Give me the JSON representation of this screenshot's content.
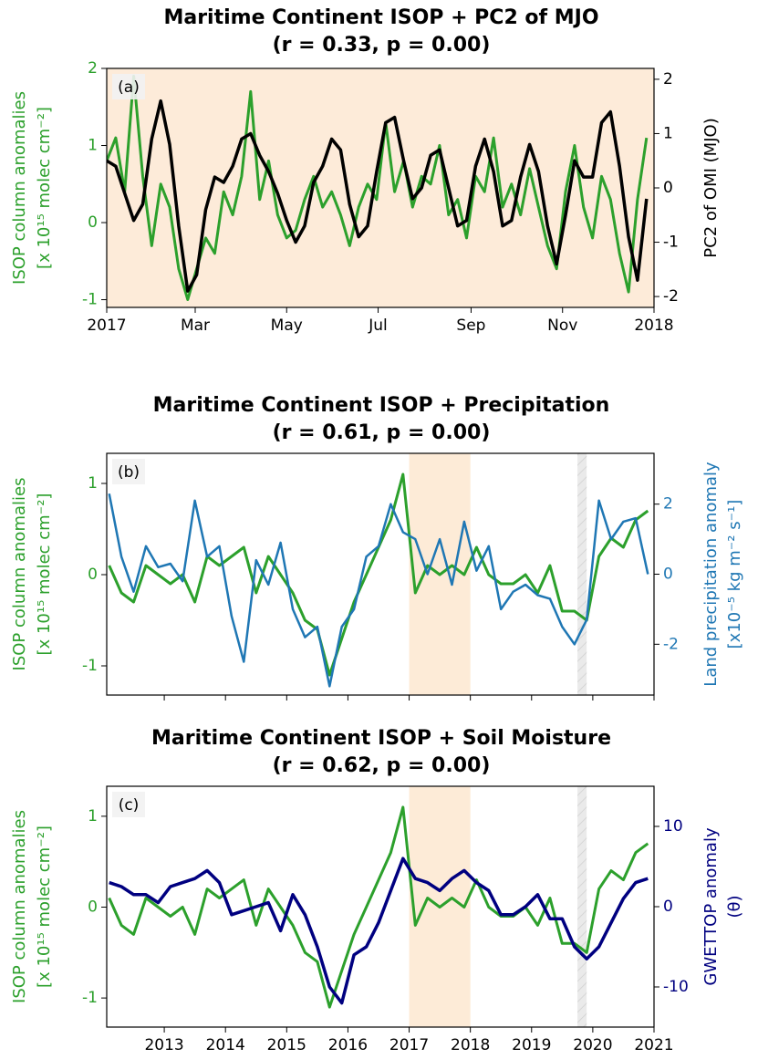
{
  "chart_data": [
    {
      "type": "line",
      "title": "Maritime Continent ISOP + PC2 of MJO",
      "subtitle": "(r = 0.33, p =  0.00)",
      "panel_label": "(a)",
      "background": "#fdebd9",
      "x": [
        0,
        6,
        12,
        18,
        24,
        30,
        36,
        42,
        48,
        54,
        60,
        66,
        72,
        78,
        84,
        90,
        96,
        102,
        108,
        114,
        120,
        126,
        132,
        138,
        144,
        150,
        156,
        162,
        168,
        174,
        180,
        186,
        192,
        198,
        204,
        210,
        216,
        222,
        228,
        234,
        240,
        246,
        252,
        258,
        264,
        270,
        276,
        282,
        288,
        294,
        300,
        306,
        312,
        318,
        324,
        330,
        336,
        342,
        348,
        354,
        360
      ],
      "xlim": [
        0,
        365
      ],
      "xticks": [
        {
          "value": 0,
          "label": "2017"
        },
        {
          "value": 59,
          "label": "Mar"
        },
        {
          "value": 120,
          "label": "May"
        },
        {
          "value": 181,
          "label": "Jul"
        },
        {
          "value": 243,
          "label": "Sep"
        },
        {
          "value": 304,
          "label": "Nov"
        },
        {
          "value": 365,
          "label": "2018"
        }
      ],
      "ylim": [
        -1.1,
        2
      ],
      "yticks": [
        -1,
        0,
        1,
        2
      ],
      "y2lim": [
        -2.2,
        2.2
      ],
      "y2ticks": [
        -2,
        -1,
        0,
        1,
        2
      ],
      "ylabel": [
        "ISOP column anomalies",
        "[x 10¹⁵ molec cm⁻²]"
      ],
      "y2label": [
        "PC2 of OMI (MJO)"
      ],
      "series": [
        {
          "color": "#2ca02c",
          "values": [
            0.8,
            1.1,
            0.4,
            1.9,
            0.6,
            -0.3,
            0.5,
            0.2,
            -0.6,
            -1.0,
            -0.6,
            -0.2,
            -0.4,
            0.4,
            0.1,
            0.6,
            1.7,
            0.3,
            0.8,
            0.1,
            -0.2,
            -0.1,
            0.3,
            0.6,
            0.2,
            0.4,
            0.1,
            -0.3,
            0.2,
            0.5,
            0.3,
            1.3,
            0.4,
            0.8,
            0.2,
            0.6,
            0.5,
            1.0,
            0.1,
            0.3,
            -0.2,
            0.6,
            0.4,
            1.1,
            0.2,
            0.5,
            0.1,
            0.7,
            0.2,
            -0.3,
            -0.6,
            0.4,
            1.0,
            0.2,
            -0.2,
            0.6,
            0.3,
            -0.4,
            -0.9,
            0.3,
            1.1
          ]
        },
        {
          "color": "#000000",
          "axis": "y2",
          "values": [
            0.5,
            0.4,
            -0.1,
            -0.6,
            -0.3,
            0.9,
            1.6,
            0.8,
            -0.7,
            -1.9,
            -1.6,
            -0.4,
            0.2,
            0.1,
            0.4,
            0.9,
            1.0,
            0.6,
            0.3,
            -0.1,
            -0.6,
            -1.0,
            -0.7,
            0.1,
            0.4,
            0.9,
            0.7,
            -0.3,
            -0.9,
            -0.7,
            0.3,
            1.2,
            1.3,
            0.5,
            -0.2,
            0.0,
            0.6,
            0.7,
            0.0,
            -0.7,
            -0.6,
            0.4,
            0.9,
            0.3,
            -0.7,
            -0.6,
            0.2,
            0.8,
            0.3,
            -0.7,
            -1.4,
            -0.5,
            0.5,
            0.2,
            0.2,
            1.2,
            1.4,
            0.4,
            -0.9,
            -1.7,
            -0.2
          ]
        }
      ]
    },
    {
      "type": "line",
      "title": "Maritime Continent ISOP + Precipitation",
      "subtitle": "(r = 0.61, p =  0.00)",
      "panel_label": "(b)",
      "spans": [
        {
          "start": 2017,
          "end": 2018,
          "color": "#fde9d3"
        },
        {
          "start": 2019.75,
          "end": 2019.9,
          "color": "#e8e8e8"
        }
      ],
      "x": [
        2012.1,
        2012.3,
        2012.5,
        2012.7,
        2012.9,
        2013.1,
        2013.3,
        2013.5,
        2013.7,
        2013.9,
        2014.1,
        2014.3,
        2014.5,
        2014.7,
        2014.9,
        2015.1,
        2015.3,
        2015.5,
        2015.7,
        2015.9,
        2016.1,
        2016.3,
        2016.5,
        2016.7,
        2016.9,
        2017.1,
        2017.3,
        2017.5,
        2017.7,
        2017.9,
        2018.1,
        2018.3,
        2018.5,
        2018.7,
        2018.9,
        2019.1,
        2019.3,
        2019.5,
        2019.7,
        2019.9,
        2020.1,
        2020.3,
        2020.5,
        2020.7,
        2020.9
      ],
      "xlim": [
        2012.06,
        2021
      ],
      "xticks": [
        2013,
        2014,
        2015,
        2016,
        2017,
        2018,
        2019,
        2020,
        2021
      ],
      "xtick_labels": false,
      "ylim": [
        -1.32,
        1.33
      ],
      "yticks": [
        -1,
        0,
        1
      ],
      "y2lim": [
        -3.45,
        3.45
      ],
      "y2ticks": [
        -2,
        0,
        2
      ],
      "ylabel": [
        "ISOP column anomalies",
        "[x 10¹⁵ molec cm⁻²]"
      ],
      "y2label": [
        "Land precipitation anomaly",
        "[x10⁻⁵ kg m⁻² s⁻¹]"
      ],
      "series": [
        {
          "color": "#2ca02c",
          "values": [
            0.1,
            -0.2,
            -0.3,
            0.1,
            0.0,
            -0.1,
            0.0,
            -0.3,
            0.2,
            0.1,
            0.2,
            0.3,
            -0.2,
            0.2,
            0.0,
            -0.2,
            -0.5,
            -0.6,
            -1.1,
            -0.7,
            -0.3,
            0.0,
            0.3,
            0.6,
            1.1,
            -0.2,
            0.1,
            0.0,
            0.1,
            0.0,
            0.3,
            0.0,
            -0.1,
            -0.1,
            0.0,
            -0.2,
            0.1,
            -0.4,
            -0.4,
            -0.5,
            0.2,
            0.4,
            0.3,
            0.6,
            0.7
          ]
        },
        {
          "color": "#1f77b4",
          "axis": "y2",
          "values": [
            2.3,
            0.5,
            -0.5,
            0.8,
            0.2,
            0.3,
            -0.2,
            2.1,
            0.5,
            0.8,
            -1.2,
            -2.5,
            0.4,
            -0.3,
            0.9,
            -1.0,
            -1.8,
            -1.5,
            -3.2,
            -1.5,
            -1.0,
            0.5,
            0.8,
            2.0,
            1.2,
            1.0,
            0.0,
            1.0,
            -0.3,
            1.5,
            0.1,
            0.8,
            -1.0,
            -0.5,
            -0.3,
            -0.6,
            -0.7,
            -1.5,
            -2.0,
            -1.3,
            2.1,
            1.0,
            1.5,
            1.6,
            0.0
          ]
        }
      ]
    },
    {
      "type": "line",
      "title": "Maritime Continent ISOP + Soil Moisture",
      "subtitle": "(r = 0.62, p =  0.00)",
      "panel_label": "(c)",
      "spans": [
        {
          "start": 2017,
          "end": 2018,
          "color": "#fde9d3"
        },
        {
          "start": 2019.75,
          "end": 2019.9,
          "color": "#e8e8e8"
        }
      ],
      "x": [
        2012.1,
        2012.3,
        2012.5,
        2012.7,
        2012.9,
        2013.1,
        2013.3,
        2013.5,
        2013.7,
        2013.9,
        2014.1,
        2014.3,
        2014.5,
        2014.7,
        2014.9,
        2015.1,
        2015.3,
        2015.5,
        2015.7,
        2015.9,
        2016.1,
        2016.3,
        2016.5,
        2016.7,
        2016.9,
        2017.1,
        2017.3,
        2017.5,
        2017.7,
        2017.9,
        2018.1,
        2018.3,
        2018.5,
        2018.7,
        2018.9,
        2019.1,
        2019.3,
        2019.5,
        2019.7,
        2019.9,
        2020.1,
        2020.3,
        2020.5,
        2020.7,
        2020.9
      ],
      "xlim": [
        2012.06,
        2021
      ],
      "xticks": [
        2013,
        2014,
        2015,
        2016,
        2017,
        2018,
        2019,
        2020,
        2021
      ],
      "ylim": [
        -1.32,
        1.33
      ],
      "yticks": [
        -1,
        0,
        1
      ],
      "y2lim": [
        -15,
        15
      ],
      "y2ticks": [
        -10,
        0,
        10
      ],
      "ylabel": [
        "ISOP column anomalies",
        "[x 10¹⁵ molec cm⁻²]"
      ],
      "y2label": [
        "GWETTOP anomaly",
        "(θ)"
      ],
      "series": [
        {
          "color": "#2ca02c",
          "values": [
            0.1,
            -0.2,
            -0.3,
            0.1,
            0.0,
            -0.1,
            0.0,
            -0.3,
            0.2,
            0.1,
            0.2,
            0.3,
            -0.2,
            0.2,
            0.0,
            -0.2,
            -0.5,
            -0.6,
            -1.1,
            -0.7,
            -0.3,
            0.0,
            0.3,
            0.6,
            1.1,
            -0.2,
            0.1,
            0.0,
            0.1,
            0.0,
            0.3,
            0.0,
            -0.1,
            -0.1,
            0.0,
            -0.2,
            0.1,
            -0.4,
            -0.4,
            -0.5,
            0.2,
            0.4,
            0.3,
            0.6,
            0.7
          ]
        },
        {
          "color": "#000080",
          "axis": "y2",
          "values": [
            3,
            2.5,
            1.5,
            1.5,
            0.5,
            2.5,
            3,
            3.5,
            4.5,
            3,
            -1,
            -0.5,
            0,
            0.5,
            -3,
            1.5,
            -1,
            -5,
            -10,
            -12,
            -6,
            -5,
            -2,
            2,
            6,
            3.5,
            3,
            2,
            3.5,
            4.5,
            3,
            2,
            -1,
            -1,
            0,
            1.5,
            -1.5,
            -1.5,
            -5,
            -6.5,
            -5,
            -2,
            1,
            3,
            3.5
          ]
        }
      ]
    }
  ]
}
